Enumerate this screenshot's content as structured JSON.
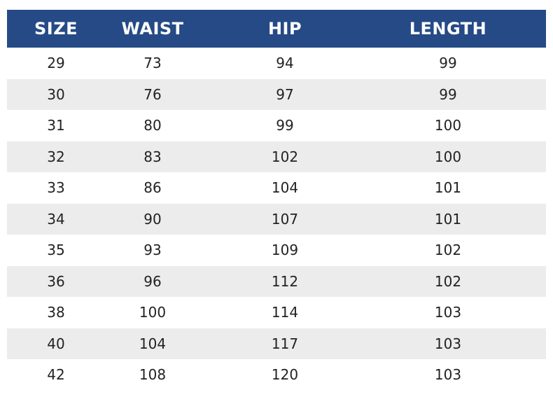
{
  "table": {
    "header_color": "#254a86",
    "stripe_color": "#ececec",
    "columns": [
      "SIZE",
      "WAIST",
      "HIP",
      "LENGTH"
    ],
    "rows": [
      [
        "29",
        "73",
        "94",
        "99"
      ],
      [
        "30",
        "76",
        "97",
        "99"
      ],
      [
        "31",
        "80",
        "99",
        "100"
      ],
      [
        "32",
        "83",
        "102",
        "100"
      ],
      [
        "33",
        "86",
        "104",
        "101"
      ],
      [
        "34",
        "90",
        "107",
        "101"
      ],
      [
        "35",
        "93",
        "109",
        "102"
      ],
      [
        "36",
        "96",
        "112",
        "102"
      ],
      [
        "38",
        "100",
        "114",
        "103"
      ],
      [
        "40",
        "104",
        "117",
        "103"
      ],
      [
        "42",
        "108",
        "120",
        "103"
      ]
    ]
  }
}
